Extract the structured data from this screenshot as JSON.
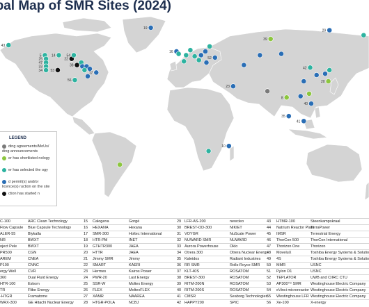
{
  "title": "obal Map of SMR Sites (2024)",
  "legend": {
    "title": "LEGEND",
    "items": [
      {
        "text": "ding agreements/MoUs/ ding announcements",
        "color": "#7a7a7a"
      },
      {
        "text": "er has shortlisted nology",
        "color": "#8cc63f"
      },
      {
        "text": "er has selected the ogy",
        "color": "#2db3a0"
      },
      {
        "text": "d permit(s) and/or licence(s) ruction on the site",
        "color": "#2a6eb5"
      },
      {
        "text": "ction has started n",
        "color": "#111111"
      }
    ]
  },
  "colors": {
    "ocean": "#ffffff",
    "land": "#d4d4d4",
    "black": "#111111",
    "darkblue": "#2a6eb5",
    "teal": "#2db3a0",
    "green": "#8cc63f",
    "grey": "#7a7a7a"
  },
  "map_markers": [
    {
      "label": "43",
      "lon": -160,
      "lat": 60,
      "color": "teal"
    },
    {
      "label": "5",
      "lon": -126,
      "lat": 52,
      "color": "teal"
    },
    {
      "label": "25",
      "lon": -125,
      "lat": 49,
      "color": "teal"
    },
    {
      "label": "47",
      "lon": -125,
      "lat": 46,
      "color": "teal"
    },
    {
      "label": "33",
      "lon": -125,
      "lat": 43,
      "color": "teal"
    },
    {
      "label": "34",
      "lon": -125,
      "lat": 40,
      "color": "teal"
    },
    {
      "label": "14",
      "lon": -113,
      "lat": 52,
      "color": "teal"
    },
    {
      "label": "22",
      "lon": -101,
      "lat": 49,
      "color": "black"
    },
    {
      "label": "38",
      "lon": -96,
      "lat": 44,
      "color": "black"
    },
    {
      "label": "54",
      "lon": -99,
      "lat": 52,
      "color": "teal"
    },
    {
      "label": "",
      "lon": -92,
      "lat": 46,
      "color": "teal"
    },
    {
      "label": "",
      "lon": -91,
      "lat": 43,
      "color": "darkblue"
    },
    {
      "label": "",
      "lon": -87,
      "lat": 43,
      "color": "darkblue"
    },
    {
      "label": "",
      "lon": -84,
      "lat": 41,
      "color": "darkblue"
    },
    {
      "label": "",
      "lon": -89,
      "lat": 40,
      "color": "teal"
    },
    {
      "label": "53",
      "lon": -114,
      "lat": 40,
      "color": "black"
    },
    {
      "label": "17",
      "lon": -78,
      "lat": 38,
      "color": "darkblue"
    },
    {
      "label": "56",
      "lon": -98,
      "lat": 32,
      "color": "teal"
    },
    {
      "label": "",
      "lon": -86,
      "lat": 35,
      "color": "darkblue"
    },
    {
      "label": "19",
      "lon": -27,
      "lat": 74,
      "color": "darkblue"
    },
    {
      "label": "16",
      "lon": -3,
      "lat": 55,
      "color": "darkblue"
    },
    {
      "label": "",
      "lon": -1,
      "lat": 53,
      "color": "teal"
    },
    {
      "label": "",
      "lon": 10,
      "lat": 56,
      "color": "teal"
    },
    {
      "label": "",
      "lon": 6,
      "lat": 52,
      "color": "teal"
    },
    {
      "label": "",
      "lon": 14,
      "lat": 51,
      "color": "teal"
    },
    {
      "label": "",
      "lon": 20,
      "lat": 52,
      "color": "darkblue"
    },
    {
      "label": "",
      "lon": 18,
      "lat": 48,
      "color": "teal"
    },
    {
      "label": "",
      "lon": 25,
      "lat": 46,
      "color": "darkblue"
    },
    {
      "label": "",
      "lon": 4,
      "lat": 47,
      "color": "teal"
    },
    {
      "label": "",
      "lon": 28,
      "lat": 59,
      "color": "teal"
    },
    {
      "label": "",
      "lon": 24,
      "lat": 55,
      "color": "darkblue"
    },
    {
      "label": "52",
      "lon": 33,
      "lat": 50,
      "color": "darkblue"
    },
    {
      "label": "23",
      "lon": 50,
      "lat": 27,
      "color": "darkblue"
    },
    {
      "label": "",
      "lon": 60,
      "lat": 44,
      "color": "darkblue"
    },
    {
      "label": "",
      "lon": 75,
      "lat": 52,
      "color": "darkblue"
    },
    {
      "label": "",
      "lon": 95,
      "lat": 53,
      "color": "darkblue"
    },
    {
      "label": "39",
      "lon": 85,
      "lat": 65,
      "color": "green"
    },
    {
      "label": "29",
      "lon": 140,
      "lat": 72,
      "color": "darkblue"
    },
    {
      "label": "",
      "lon": 172,
      "lat": 68,
      "color": "teal"
    },
    {
      "label": "42",
      "lon": 122,
      "lat": 42,
      "color": "teal"
    },
    {
      "label": "",
      "lon": 128,
      "lat": 36,
      "color": "darkblue"
    },
    {
      "label": "",
      "lon": 136,
      "lat": 37,
      "color": "darkblue"
    },
    {
      "label": "",
      "lon": 140,
      "lat": 40,
      "color": "teal"
    },
    {
      "label": "",
      "lon": 116,
      "lat": 31,
      "color": "darkblue"
    },
    {
      "label": "20",
      "lon": 139,
      "lat": 31,
      "color": "green"
    },
    {
      "label": "",
      "lon": 82,
      "lat": 23,
      "color": "grey"
    },
    {
      "label": "8",
      "lon": 100,
      "lat": 18,
      "color": "green"
    },
    {
      "label": "",
      "lon": 121,
      "lat": 21,
      "color": "green"
    },
    {
      "label": "",
      "lon": 113,
      "lat": 19,
      "color": "darkblue"
    },
    {
      "label": "40",
      "lon": 123,
      "lat": 13,
      "color": "darkblue"
    },
    {
      "label": "35",
      "lon": 102,
      "lat": 3,
      "color": "darkblue"
    },
    {
      "label": "41",
      "lon": 116,
      "lat": -1,
      "color": "darkblue"
    },
    {
      "label": "10",
      "lon": 46,
      "lat": -21,
      "color": "darkblue"
    },
    {
      "label": "",
      "lon": 27,
      "lat": -25,
      "color": "teal"
    },
    {
      "label": "",
      "lon": -56,
      "lat": -36,
      "color": "green"
    }
  ],
  "rows": [
    [
      "C-100",
      "ARC Clean Technology",
      "15",
      "Calogena",
      "Gorgé",
      "29",
      "LFR-AS-200",
      "newcleo",
      "43",
      "HTMR-100",
      "Steenkampskraal"
    ],
    [
      "Flow Capsule",
      "Blue Capsule Technology",
      "16",
      "HEXANA",
      "Hexana",
      "30",
      "BREST-OD-300",
      "NIKIET",
      "44",
      "Natrium Reactor Plant",
      "TerraPower"
    ],
    [
      "ALER-55",
      "Blykalla",
      "17",
      "SMR-300",
      "Holtec International",
      "31",
      "VOYGR",
      "NuScale Power",
      "45",
      "IMSR",
      "Terrestrial Energy"
    ],
    [
      "NR",
      "BWXT",
      "18",
      "HTR-PM",
      "INET",
      "32",
      "NUWARD SMR",
      "NUWARD",
      "46",
      "ThorCon 500",
      "ThorCon International"
    ],
    [
      "oject Pele",
      "BWXT",
      "19",
      "GTHTR300",
      "JAEA",
      "33",
      "Aurora Powerhouse",
      "Oklo",
      "47",
      "Thorizon One",
      "Thorizon"
    ],
    [
      "PR500",
      "CGN",
      "20",
      "HTTR",
      "JAEA",
      "34",
      "Otrera 300",
      "Otrera Nuclear Energy",
      "48",
      "MoveluX",
      "Toshiba Energy Systems & Solutions Co"
    ],
    [
      "AREM",
      "CNEA",
      "21",
      "Jimmy SMR",
      "Jimmy",
      "35",
      "Kaleidos",
      "Radiant Industries",
      "49",
      "4S",
      "Toshiba Energy Systems & Solutions Co"
    ],
    [
      "P100",
      "CNNC",
      "22",
      "SMART",
      "KAERI",
      "36",
      "RR SMR",
      "Rolls-Royce SMR",
      "50",
      "MMR",
      "USNC"
    ],
    [
      "ergy Well",
      "CVR",
      "23",
      "Hermes",
      "Kairos Power",
      "37",
      "KLT-40S",
      "ROSATOM",
      "51",
      "Pylon D1",
      "USNC"
    ],
    [
      "360",
      "Dual Fluid Energy",
      "24",
      "PWR-20",
      "Last Energy",
      "38",
      "BREST-300",
      "ROSATOM",
      "52",
      "TEPLATOR",
      "UWB and CIIRC CTU"
    ],
    [
      "HTR-100",
      "Eskom",
      "25",
      "SSR-W",
      "Moltex Energy",
      "39",
      "RITM-200N",
      "ROSATOM",
      "53",
      "AP300™ SMR",
      "Westinghouse Electric Company"
    ],
    [
      "TR",
      "Flibe Energy",
      "26",
      "FLEX",
      "MoltexFLEX",
      "40",
      "RITM-200S",
      "ROSATOM",
      "54",
      "eVinci microreactor",
      "Westinghouse Electric Company"
    ],
    [
      "-HTGR",
      "Framatome",
      "27",
      "XAMR",
      "NAAREA",
      "41",
      "CMSR",
      "Seaborg Technologies",
      "55",
      "Westinghouse LFR",
      "Westinghouse Electric Company"
    ],
    [
      "WRX-300",
      "GE Hitachi Nuclear Energy",
      "28",
      "HTGR-POLA",
      "NCBJ",
      "42",
      "HAPPY200",
      "SPIC",
      "56",
      "Xe-100",
      "X-energy"
    ]
  ]
}
